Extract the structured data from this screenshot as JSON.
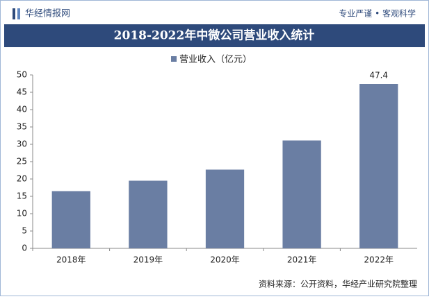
{
  "header": {
    "brand": "华经情报网",
    "slogan": "专业严谨 • 客观科学"
  },
  "chart_data": {
    "type": "bar",
    "title": "2018-2022年中微公司营业收入统计",
    "categories": [
      "2018年",
      "2019年",
      "2020年",
      "2021年",
      "2022年"
    ],
    "series": [
      {
        "name": "营业收入（亿元）",
        "color": "#6a7ea3",
        "values": [
          16.5,
          19.5,
          22.7,
          31.1,
          47.4
        ],
        "value_labels": [
          null,
          null,
          null,
          null,
          "47.4"
        ]
      }
    ],
    "ylim": [
      0,
      50
    ],
    "yticks": [
      0,
      5,
      10,
      15,
      20,
      25,
      30,
      35,
      40,
      45,
      50
    ],
    "grid": false,
    "legend": "top"
  },
  "footer": {
    "source": "资料来源：公开资料，华经产业研究院整理"
  }
}
